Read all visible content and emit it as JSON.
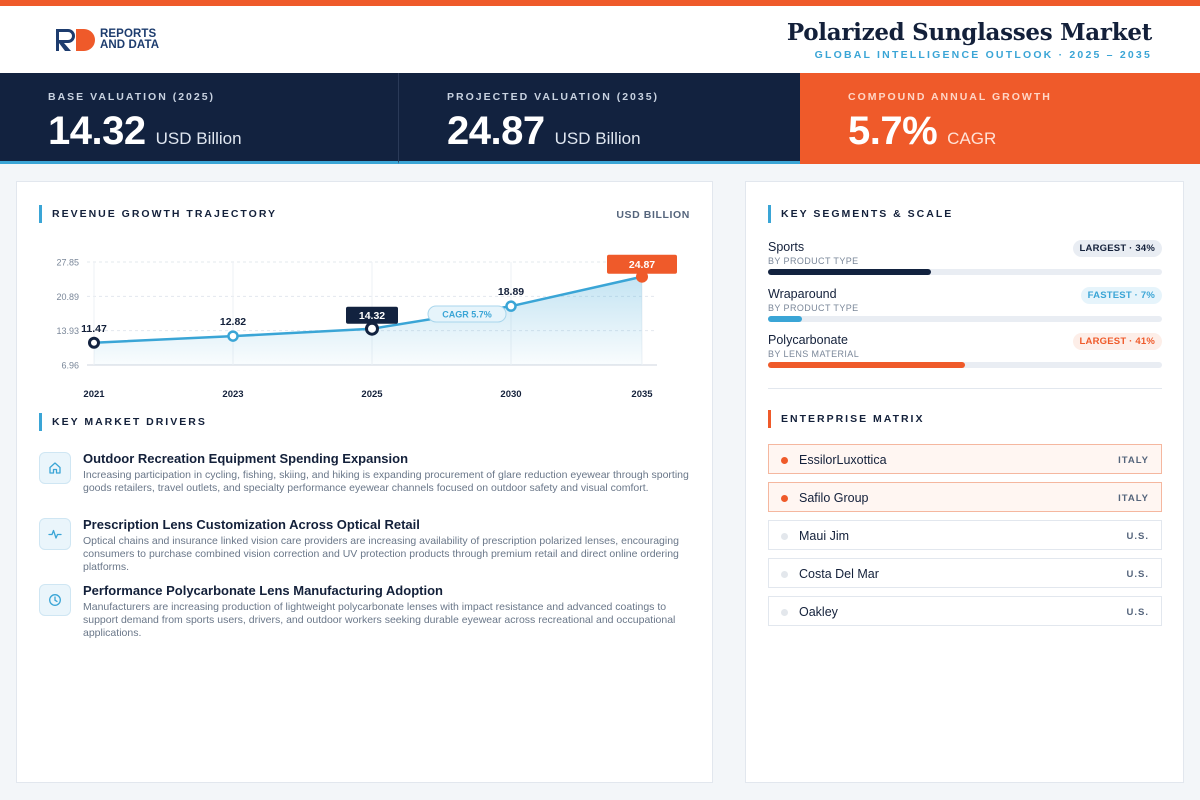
{
  "brand": {
    "line1": "REPORTS",
    "line2": "AND DATA"
  },
  "header": {
    "title": "Polarized Sunglasses Market",
    "subtitle": "GLOBAL INTELLIGENCE OUTLOOK  ·  2025 – 2035"
  },
  "kpis": [
    {
      "label": "BASE VALUATION (2025)",
      "value": "14.32",
      "unit": "USD Billion"
    },
    {
      "label": "PROJECTED VALUATION (2035)",
      "value": "24.87",
      "unit": "USD Billion"
    },
    {
      "label": "COMPOUND ANNUAL GROWTH",
      "value": "5.7%",
      "unit": "CAGR"
    }
  ],
  "colors": {
    "navy": "#12223f",
    "accent_blue": "#3aa5d6",
    "accent_orange": "#ef5a2a"
  },
  "revenue": {
    "section_title": "REVENUE GROWTH TRAJECTORY",
    "unit_label": "USD BILLION"
  },
  "chart_data": {
    "type": "area",
    "title": "REVENUE GROWTH TRAJECTORY",
    "ylabel": "USD BILLION",
    "x": [
      "2021",
      "2023",
      "2025",
      "2030",
      "2035"
    ],
    "values": [
      11.47,
      12.82,
      14.32,
      18.89,
      24.87
    ],
    "value_labels": [
      "11.47",
      "12.82",
      "14.32",
      "18.89",
      "24.87"
    ],
    "yticks": [
      6.96,
      13.93,
      20.89,
      27.85
    ],
    "ytick_labels": [
      "6.96",
      "13.93",
      "20.89",
      "27.85"
    ],
    "ylim": [
      6.96,
      27.85
    ],
    "grid": true,
    "annotation": "CAGR 5.7%",
    "highlight": {
      "base": "2025",
      "projected": "2035"
    }
  },
  "drivers": {
    "section_title": "KEY MARKET DRIVERS",
    "items": [
      {
        "icon": "home-icon",
        "title": "Outdoor Recreation Equipment Spending Expansion",
        "desc": "Increasing participation in cycling, fishing, skiing, and hiking is expanding procurement of glare reduction eyewear through sporting goods retailers, travel outlets, and specialty performance eyewear channels focused on outdoor safety and visual comfort."
      },
      {
        "icon": "pulse-icon",
        "title": "Prescription Lens Customization Across Optical Retail",
        "desc": "Optical chains and insurance linked vision care providers are increasing availability of prescription polarized lenses, encouraging consumers to purchase combined vision correction and UV protection products through premium retail and direct online ordering platforms."
      },
      {
        "icon": "clock-icon",
        "title": "Performance Polycarbonate Lens Manufacturing Adoption",
        "desc": "Manufacturers are increasing production of lightweight polycarbonate lenses with impact resistance and advanced coatings to support demand from sports users, drivers, and outdoor workers seeking durable eyewear across recreational and occupational applications."
      }
    ]
  },
  "segments": {
    "section_title": "KEY SEGMENTS & SCALE",
    "items": [
      {
        "name": "Sports",
        "sub": "BY PRODUCT TYPE",
        "badge": "LARGEST · 34%",
        "share": 34,
        "style": "navy"
      },
      {
        "name": "Wraparound",
        "sub": "BY PRODUCT TYPE",
        "badge": "FASTEST · 7%",
        "share": 7,
        "style": "blue"
      },
      {
        "name": "Polycarbonate",
        "sub": "BY LENS MATERIAL",
        "badge": "LARGEST · 41%",
        "share": 41,
        "style": "orange"
      }
    ]
  },
  "enterprise": {
    "section_title": "ENTERPRISE MATRIX",
    "items": [
      {
        "name": "EssilorLuxottica",
        "country": "ITALY",
        "highlight": true
      },
      {
        "name": "Safilo Group",
        "country": "ITALY",
        "highlight": true
      },
      {
        "name": "Maui Jim",
        "country": "U.S.",
        "highlight": false
      },
      {
        "name": "Costa Del Mar",
        "country": "U.S.",
        "highlight": false
      },
      {
        "name": "Oakley",
        "country": "U.S.",
        "highlight": false
      }
    ]
  }
}
